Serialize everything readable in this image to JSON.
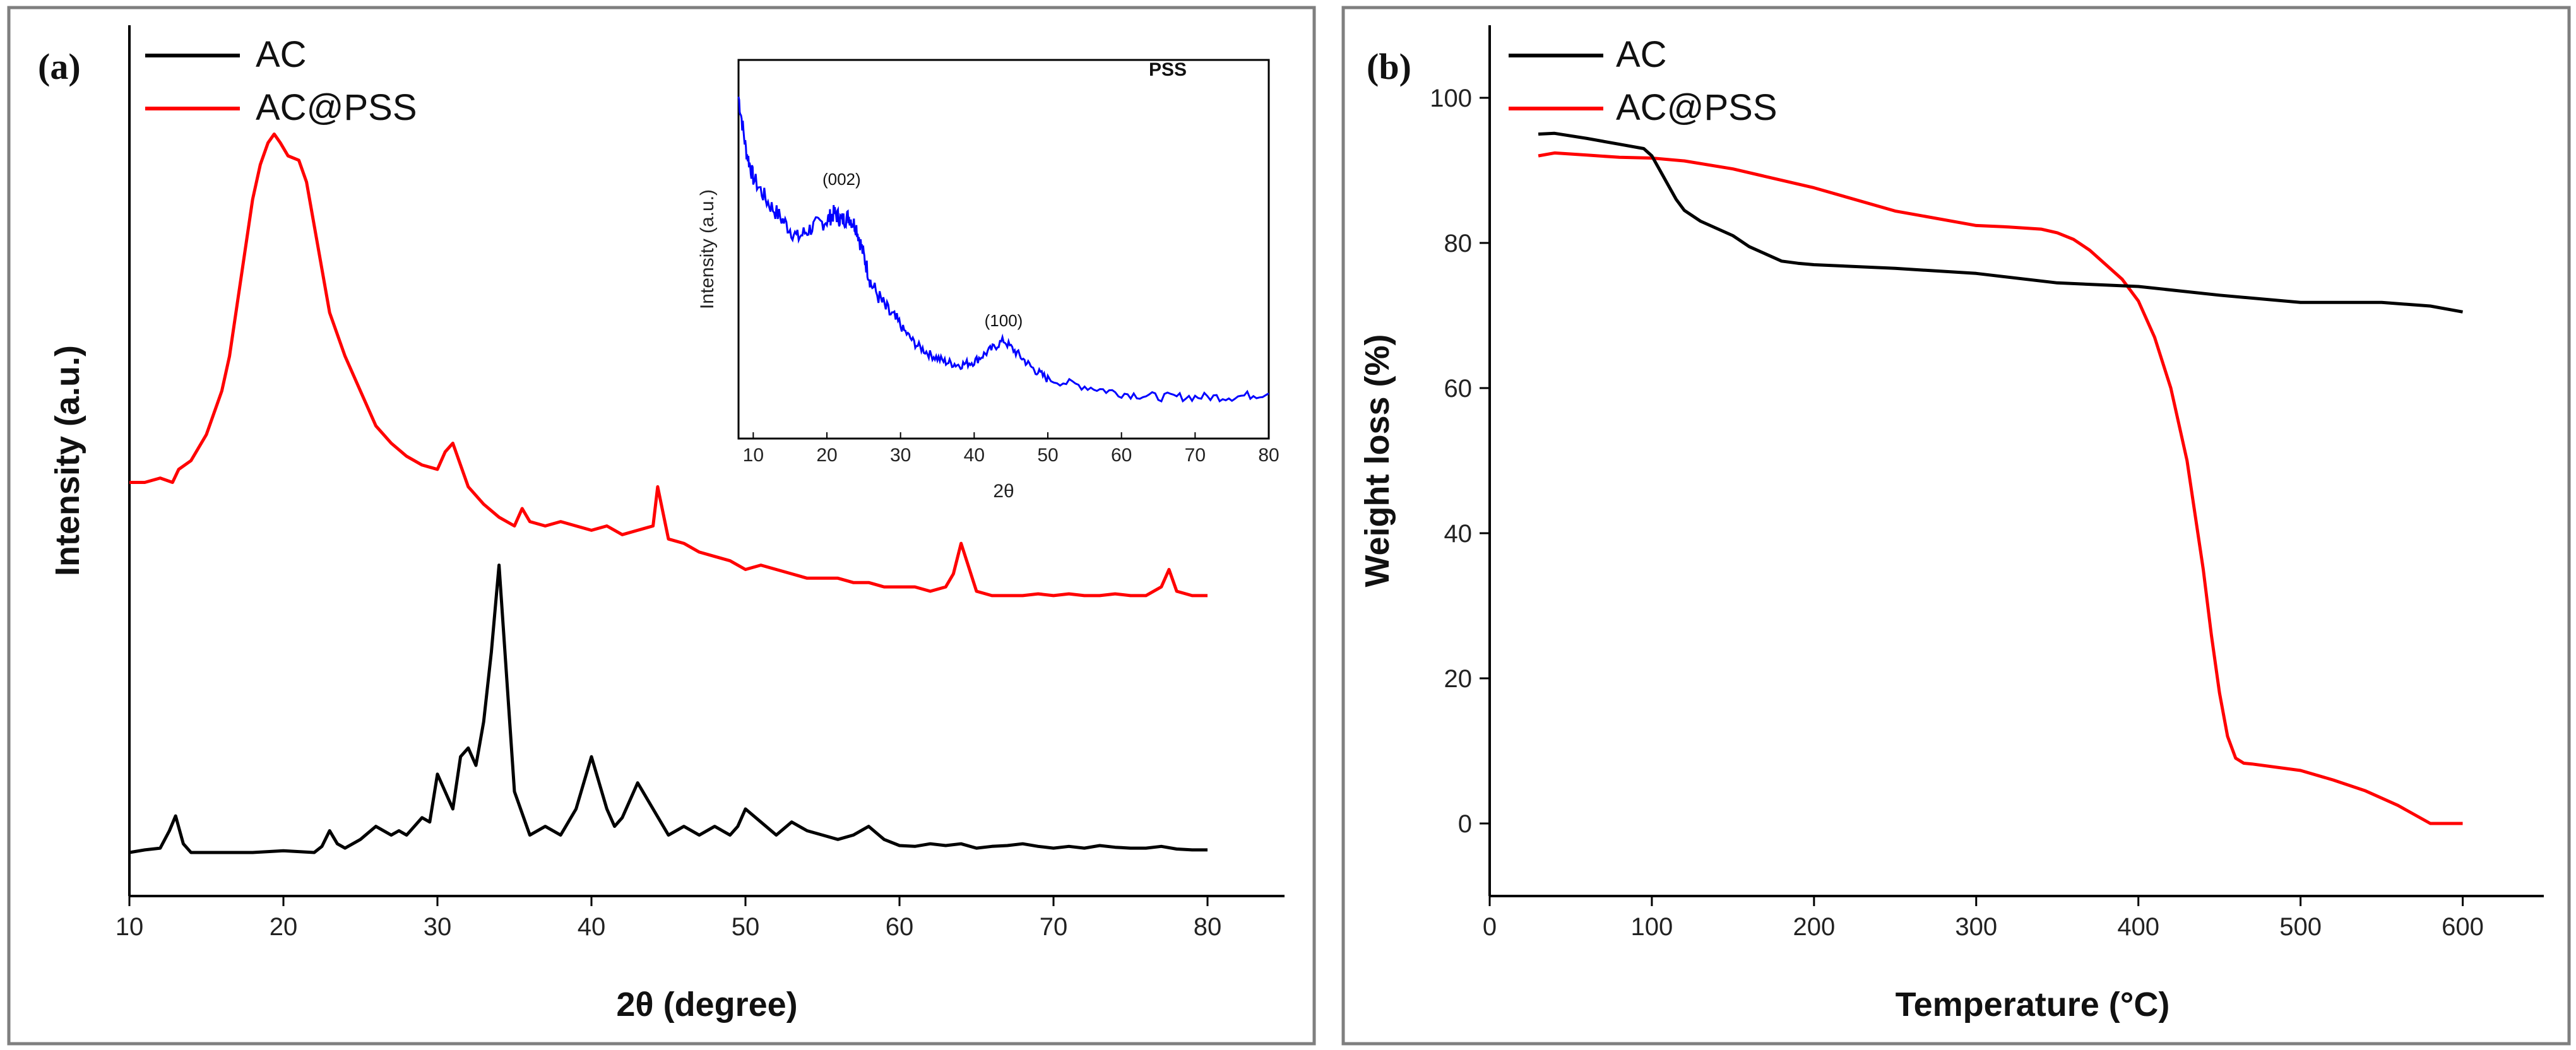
{
  "chart_data": [
    {
      "panel": "(a)",
      "type": "line",
      "xlabel": "2θ (degree)",
      "ylabel": "Intensity (a.u.)",
      "xlim": [
        10,
        85
      ],
      "ylim": [
        0,
        1
      ],
      "xticks": [
        10,
        20,
        30,
        40,
        50,
        60,
        70,
        80
      ],
      "legend": {
        "location": "top-left",
        "entries": [
          "AC",
          "AC@PSS"
        ]
      },
      "colors": {
        "AC": "#000000",
        "AC@PSS": "#ff0000"
      },
      "series": [
        {
          "name": "AC",
          "x": [
            10,
            11,
            12,
            12.6,
            13,
            13.5,
            14,
            16,
            18,
            20,
            22,
            22.5,
            23,
            23.5,
            24,
            25,
            26,
            27,
            27.5,
            28,
            28.5,
            29,
            29.5,
            30,
            30.5,
            31,
            31.5,
            32,
            32.5,
            33,
            33.5,
            34,
            34.5,
            35,
            36,
            37,
            38,
            39,
            40,
            41,
            41.5,
            42,
            43,
            44,
            45,
            46,
            47,
            48,
            49,
            49.5,
            50,
            51,
            52,
            53,
            54,
            55,
            56,
            57,
            58,
            59,
            60,
            61,
            62,
            63,
            64,
            65,
            66,
            67,
            68,
            69,
            70,
            71,
            72,
            73,
            74,
            75,
            76,
            77,
            78,
            79,
            80
          ],
          "y": [
            0.05,
            0.053,
            0.055,
            0.075,
            0.092,
            0.06,
            0.05,
            0.05,
            0.05,
            0.052,
            0.05,
            0.057,
            0.075,
            0.06,
            0.055,
            0.065,
            0.08,
            0.07,
            0.075,
            0.07,
            0.08,
            0.09,
            0.085,
            0.14,
            0.12,
            0.1,
            0.16,
            0.17,
            0.15,
            0.2,
            0.28,
            0.38,
            0.25,
            0.12,
            0.07,
            0.08,
            0.07,
            0.1,
            0.16,
            0.1,
            0.08,
            0.09,
            0.13,
            0.1,
            0.07,
            0.08,
            0.07,
            0.08,
            0.07,
            0.08,
            0.1,
            0.085,
            0.07,
            0.085,
            0.075,
            0.07,
            0.065,
            0.07,
            0.08,
            0.065,
            0.058,
            0.057,
            0.06,
            0.058,
            0.06,
            0.055,
            0.057,
            0.058,
            0.06,
            0.057,
            0.055,
            0.057,
            0.055,
            0.058,
            0.056,
            0.055,
            0.055,
            0.057,
            0.054,
            0.053,
            0.053
          ]
        },
        {
          "name": "AC@PSS",
          "x": [
            10,
            11,
            12,
            12.8,
            13.2,
            14,
            15,
            16,
            16.5,
            17,
            17.5,
            18,
            18.5,
            19,
            19.4,
            19.8,
            20.3,
            21,
            21.5,
            22,
            22.5,
            23,
            24,
            25,
            26,
            27,
            28,
            29,
            30,
            30.5,
            31,
            32,
            33,
            34,
            35,
            35.5,
            36,
            37,
            38,
            39,
            40,
            41,
            42,
            43,
            44,
            44.3,
            45,
            46,
            47,
            48,
            49,
            50,
            51,
            52,
            53,
            54,
            55,
            56,
            57,
            58,
            59,
            60,
            61,
            62,
            63,
            63.5,
            64,
            65,
            66,
            67,
            68,
            69,
            70,
            71,
            72,
            73,
            74,
            75,
            76,
            77,
            77.5,
            78,
            79,
            80
          ],
          "y": [
            0.475,
            0.475,
            0.48,
            0.475,
            0.49,
            0.5,
            0.53,
            0.58,
            0.62,
            0.68,
            0.74,
            0.8,
            0.84,
            0.865,
            0.875,
            0.865,
            0.85,
            0.845,
            0.82,
            0.77,
            0.72,
            0.67,
            0.62,
            0.58,
            0.54,
            0.52,
            0.505,
            0.495,
            0.49,
            0.51,
            0.52,
            0.47,
            0.45,
            0.435,
            0.425,
            0.445,
            0.43,
            0.425,
            0.43,
            0.425,
            0.42,
            0.425,
            0.415,
            0.42,
            0.425,
            0.47,
            0.41,
            0.405,
            0.395,
            0.39,
            0.385,
            0.375,
            0.38,
            0.375,
            0.37,
            0.365,
            0.365,
            0.365,
            0.36,
            0.36,
            0.355,
            0.355,
            0.355,
            0.35,
            0.355,
            0.37,
            0.405,
            0.35,
            0.345,
            0.345,
            0.345,
            0.347,
            0.345,
            0.347,
            0.345,
            0.345,
            0.347,
            0.345,
            0.345,
            0.355,
            0.375,
            0.35,
            0.345,
            0.345
          ]
        }
      ],
      "inset": {
        "title": "PSS",
        "xlabel": "2θ",
        "ylabel": "Intensity (a.u.)",
        "xlim": [
          8,
          80
        ],
        "ylim": [
          0,
          1
        ],
        "xticks": [
          10,
          20,
          30,
          40,
          50,
          60,
          70,
          80
        ],
        "color": "#0000ff",
        "annotations": [
          {
            "text": "(002)",
            "x": 22,
            "y": 0.7
          },
          {
            "text": "(100)",
            "x": 44,
            "y": 0.3
          }
        ],
        "series": {
          "name": "PSS",
          "x": [
            8,
            9,
            10,
            12,
            14,
            16,
            18,
            20,
            21,
            22,
            23,
            24,
            25,
            26,
            28,
            30,
            32,
            34,
            36,
            38,
            40,
            42,
            44,
            46,
            48,
            50,
            55,
            60,
            65,
            70,
            75,
            80
          ],
          "y": [
            0.95,
            0.8,
            0.72,
            0.65,
            0.6,
            0.55,
            0.58,
            0.6,
            0.62,
            0.6,
            0.61,
            0.58,
            0.5,
            0.42,
            0.35,
            0.3,
            0.25,
            0.22,
            0.2,
            0.19,
            0.2,
            0.23,
            0.26,
            0.22,
            0.18,
            0.15,
            0.13,
            0.11,
            0.1,
            0.1,
            0.1,
            0.11
          ]
        }
      }
    },
    {
      "panel": "(b)",
      "type": "line",
      "xlabel": "Temperature (°C)",
      "ylabel": "Weight loss (%)",
      "xlim": [
        0,
        650
      ],
      "ylim": [
        -10,
        110
      ],
      "xticks": [
        0,
        100,
        200,
        300,
        400,
        500,
        600
      ],
      "yticks": [
        0,
        20,
        40,
        60,
        80,
        100
      ],
      "legend": {
        "location": "top-left",
        "entries": [
          "AC",
          "AC@PSS"
        ]
      },
      "colors": {
        "AC": "#000000",
        "AC@PSS": "#ff0000"
      },
      "series": [
        {
          "name": "AC",
          "x": [
            30,
            40,
            60,
            80,
            95,
            100,
            105,
            110,
            115,
            120,
            130,
            140,
            150,
            160,
            170,
            180,
            190,
            200,
            250,
            300,
            350,
            400,
            450,
            500,
            550,
            580,
            600
          ],
          "y": [
            95,
            95.1,
            94.4,
            93.6,
            93,
            92,
            90,
            88,
            86,
            84.5,
            83,
            82,
            81,
            79.5,
            78.5,
            77.5,
            77.2,
            77,
            76.5,
            75.8,
            74.5,
            74,
            72.8,
            71.8,
            71.8,
            71.3,
            70.5
          ]
        },
        {
          "name": "AC@PSS",
          "x": [
            30,
            40,
            60,
            80,
            100,
            120,
            150,
            200,
            250,
            300,
            320,
            340,
            350,
            360,
            370,
            380,
            390,
            400,
            410,
            420,
            430,
            440,
            445,
            450,
            455,
            460,
            465,
            470,
            500,
            520,
            540,
            560,
            580,
            600
          ],
          "y": [
            92,
            92.4,
            92.1,
            91.8,
            91.7,
            91.3,
            90.2,
            87.6,
            84.4,
            82.4,
            82.2,
            81.9,
            81.4,
            80.5,
            79,
            77,
            75,
            72,
            67,
            60,
            50,
            35,
            26,
            18,
            12,
            9,
            8.3,
            8.2,
            7.3,
            6,
            4.5,
            2.5,
            0,
            0
          ]
        }
      ]
    }
  ]
}
